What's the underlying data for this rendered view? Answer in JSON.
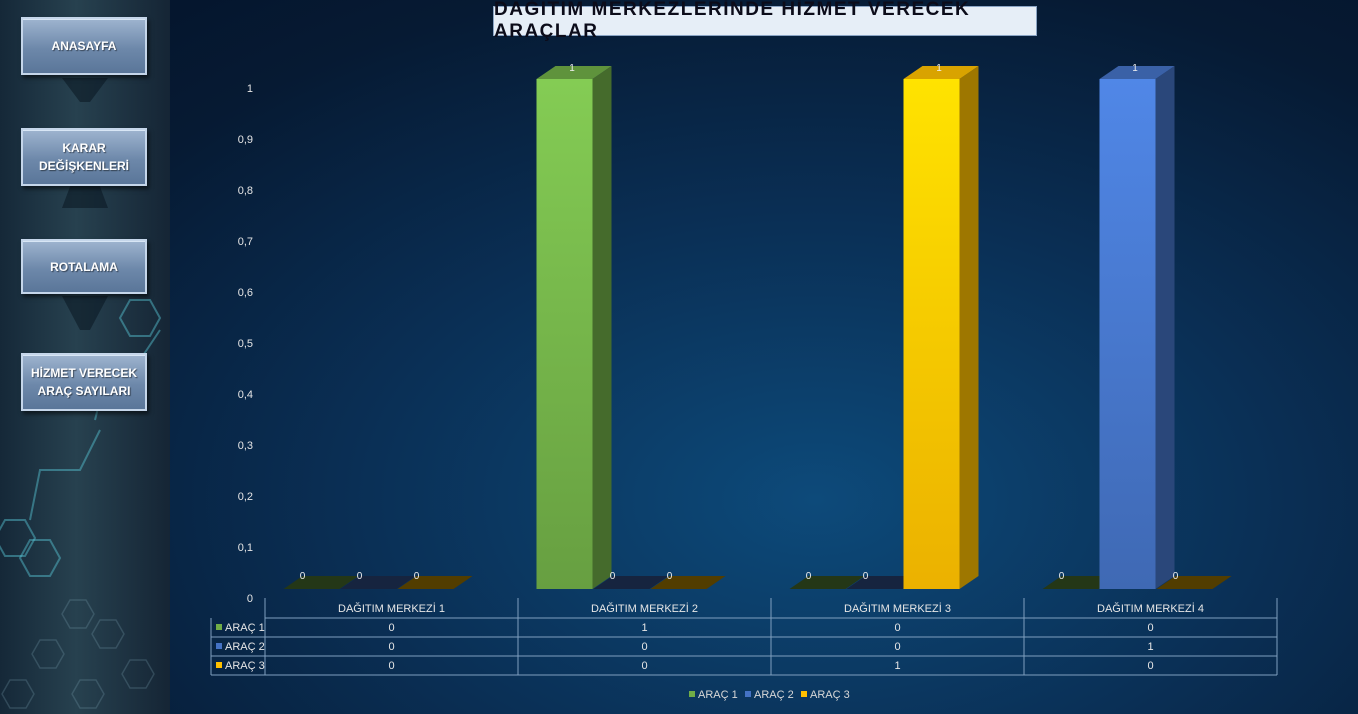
{
  "nav": {
    "items": [
      {
        "label": "ANASAYFA"
      },
      {
        "label": "KARAR DEĞİŞKENLERİ"
      },
      {
        "label": "ROTALAMA"
      },
      {
        "label": "HİZMET VERECEK ARAÇ SAYILARI"
      }
    ]
  },
  "colors": {
    "series": [
      "#70ad47",
      "#4472c4",
      "#ffc000"
    ],
    "background": "#0a2f55",
    "sidebar": "#1f3444",
    "button": "#7f9bbd"
  },
  "chart_data": {
    "type": "bar",
    "variant": "3d-clustered-column-with-data-table",
    "title": "DAĞITIM MERKEZLERİNDE HİZMET VERECEK ARAÇLAR",
    "xlabel": "",
    "ylabel": "",
    "categories": [
      "DAĞITIM MERKEZİ 1",
      "DAĞITIM MERKEZİ 2",
      "DAĞITIM MERKEZİ 3",
      "DAĞITIM MERKEZİ 4"
    ],
    "series": [
      {
        "name": "ARAÇ 1",
        "values": [
          0,
          1,
          0,
          0
        ]
      },
      {
        "name": "ARAÇ 2",
        "values": [
          0,
          0,
          0,
          1
        ]
      },
      {
        "name": "ARAÇ 3",
        "values": [
          0,
          0,
          1,
          0
        ]
      }
    ],
    "ylim": [
      0,
      1
    ],
    "yticks": [
      "0",
      "0,1",
      "0,2",
      "0,3",
      "0,4",
      "0,5",
      "0,6",
      "0,7",
      "0,8",
      "0,9",
      "1"
    ],
    "legend": "bottom",
    "grid": false,
    "data_labels": true
  }
}
